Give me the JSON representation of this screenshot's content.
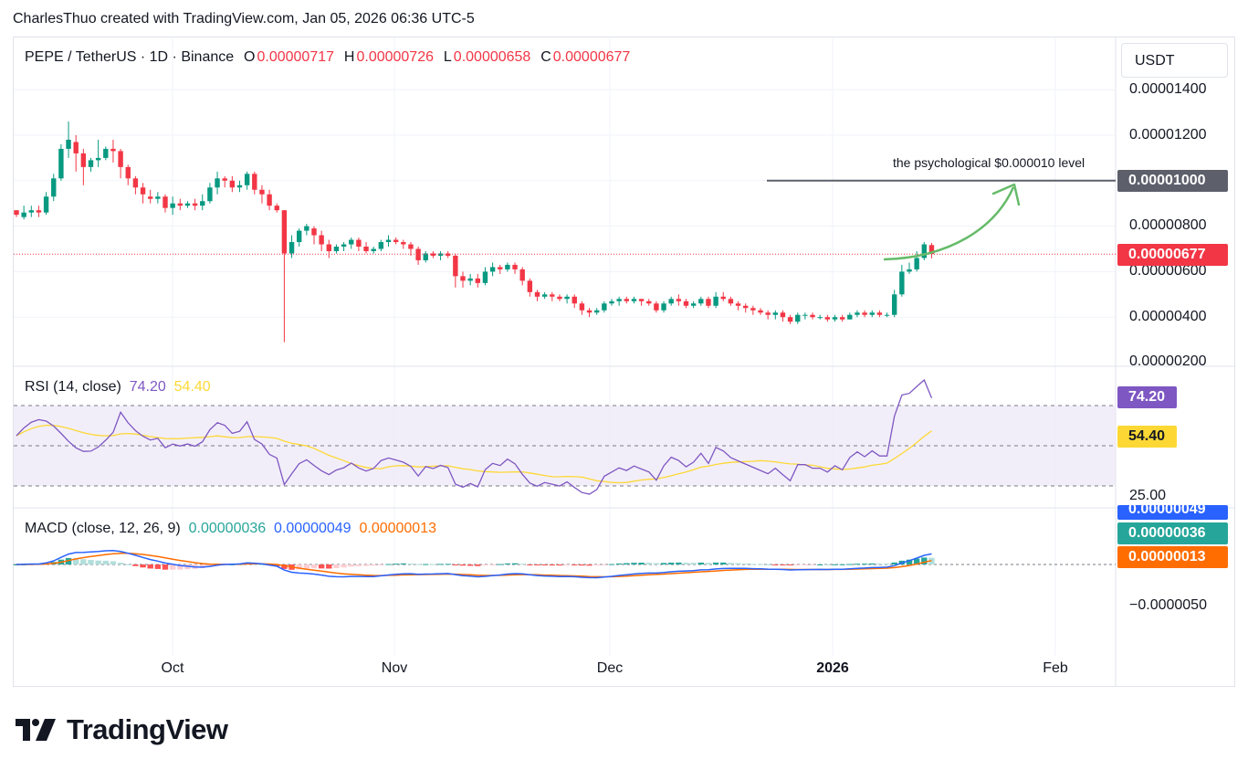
{
  "header": {
    "attribution": "CharlesThuo created with TradingView.com, Jan 05, 2026 06:36 UTC-5"
  },
  "symbol": {
    "title": "PEPE / TetherUS · 1D · Binance",
    "o_label": "O",
    "o_value": "0.00000717",
    "h_label": "H",
    "h_value": "0.00000726",
    "l_label": "L",
    "l_value": "0.00000658",
    "c_label": "C",
    "c_value": "0.00000677"
  },
  "currency_button": "USDT",
  "price_axis": {
    "ticks": [
      "0.00001400",
      "0.00001200",
      "0.00000800",
      "0.00000600",
      "0.00000400",
      "0.00000200"
    ],
    "level_badge": "0.00001000",
    "last_price_badge": "0.00000677"
  },
  "annotation": "the psychological $0.000010 level",
  "rsi": {
    "title": "RSI (14, close)",
    "value": "74.20",
    "ma_value": "54.40",
    "badge_value": "74.20",
    "badge_ma": "54.40",
    "tick_low": "25.00"
  },
  "macd": {
    "title": "MACD (close, 12, 26, 9)",
    "hist_value": "0.00000036",
    "macd_value": "0.00000049",
    "signal_value": "0.00000013",
    "badge_macd": "0.00000049",
    "badge_hist": "0.00000036",
    "badge_signal": "0.00000013",
    "tick_neg": "−0.0000050"
  },
  "time_axis": [
    "Oct",
    "Nov",
    "Dec",
    "2026",
    "Feb"
  ],
  "logo": "TradingView",
  "colors": {
    "up": "#089981",
    "down": "#f23645",
    "rsi": "#7e57c2",
    "rsi_ma": "#fdd835",
    "macd": "#2962ff",
    "signal": "#ff6d00",
    "arrow": "#66bb6a",
    "level": "#5d606b"
  },
  "chart_data": {
    "type": "candlestick",
    "symbol": "PEPE/USDT",
    "interval": "1D",
    "x_start": "2025-09-08",
    "y_range": [
      2e-06,
      1.5e-05
    ],
    "horizontal_level": 1e-05,
    "last_price": 6.77e-06,
    "ohlc": [
      [
        8.7,
        8.5,
        8.7,
        8.4
      ],
      [
        8.4,
        8.6,
        8.9,
        8.3
      ],
      [
        8.6,
        8.7,
        8.9,
        8.4
      ],
      [
        8.7,
        8.6,
        8.9,
        8.4
      ],
      [
        8.6,
        9.3,
        9.5,
        8.5
      ],
      [
        9.3,
        10.1,
        10.3,
        9.1
      ],
      [
        10.1,
        11.4,
        11.6,
        10.0
      ],
      [
        11.4,
        11.8,
        12.6,
        11.0
      ],
      [
        11.7,
        11.2,
        12.0,
        10.4
      ],
      [
        11.2,
        10.6,
        11.4,
        9.8
      ],
      [
        10.6,
        10.9,
        11.0,
        10.4
      ],
      [
        10.9,
        11.0,
        11.8,
        10.6
      ],
      [
        11.0,
        11.4,
        11.5,
        10.9
      ],
      [
        11.4,
        11.3,
        11.8,
        10.8
      ],
      [
        11.3,
        10.6,
        11.4,
        10.1
      ],
      [
        10.6,
        10.1,
        10.7,
        9.8
      ],
      [
        10.1,
        9.7,
        10.2,
        9.4
      ],
      [
        9.7,
        9.4,
        9.9,
        9.0
      ],
      [
        9.3,
        9.2,
        9.6,
        9.0
      ],
      [
        9.2,
        9.3,
        9.5,
        9.0
      ],
      [
        9.3,
        8.8,
        9.4,
        8.6
      ],
      [
        8.8,
        9.0,
        9.3,
        8.5
      ],
      [
        9.0,
        8.9,
        9.2,
        8.7
      ],
      [
        8.9,
        9.0,
        9.1,
        8.8
      ],
      [
        9.0,
        8.9,
        9.2,
        8.7
      ],
      [
        8.9,
        9.1,
        9.4,
        8.7
      ],
      [
        9.1,
        9.7,
        9.9,
        9.0
      ],
      [
        9.7,
        10.1,
        10.4,
        9.4
      ],
      [
        10.1,
        10.0,
        10.2,
        9.7
      ],
      [
        10.0,
        9.7,
        10.2,
        9.5
      ],
      [
        9.7,
        9.8,
        10.0,
        9.5
      ],
      [
        9.8,
        10.3,
        10.4,
        9.6
      ],
      [
        10.3,
        9.6,
        10.4,
        9.4
      ],
      [
        9.6,
        9.4,
        9.8,
        9.0
      ],
      [
        9.4,
        8.9,
        9.6,
        8.7
      ],
      [
        8.9,
        8.7,
        9.0,
        8.6
      ],
      [
        8.7,
        6.8,
        8.7,
        2.9
      ],
      [
        6.8,
        7.3,
        7.6,
        6.6
      ],
      [
        7.3,
        7.8,
        7.9,
        7.1
      ],
      [
        7.8,
        8.0,
        8.1,
        7.6
      ],
      [
        7.9,
        7.6,
        8.0,
        7.2
      ],
      [
        7.6,
        7.2,
        7.8,
        6.9
      ],
      [
        7.2,
        6.9,
        7.4,
        6.6
      ],
      [
        6.9,
        7.1,
        7.2,
        6.8
      ],
      [
        7.1,
        7.2,
        7.3,
        6.9
      ],
      [
        7.2,
        7.4,
        7.5,
        7.0
      ],
      [
        7.4,
        7.1,
        7.5,
        6.9
      ],
      [
        7.1,
        6.9,
        7.3,
        6.8
      ],
      [
        6.9,
        7.0,
        7.1,
        6.8
      ],
      [
        7.0,
        7.3,
        7.4,
        6.9
      ],
      [
        7.3,
        7.4,
        7.6,
        7.1
      ],
      [
        7.4,
        7.3,
        7.5,
        7.2
      ],
      [
        7.3,
        7.2,
        7.4,
        7.0
      ],
      [
        7.2,
        7.0,
        7.3,
        6.7
      ],
      [
        7.0,
        6.5,
        7.1,
        6.3
      ],
      [
        6.5,
        6.8,
        6.9,
        6.4
      ],
      [
        6.8,
        6.7,
        6.9,
        6.6
      ],
      [
        6.7,
        6.8,
        6.9,
        6.5
      ],
      [
        6.8,
        6.7,
        6.9,
        6.6
      ],
      [
        6.7,
        5.8,
        6.8,
        5.3
      ],
      [
        5.8,
        5.6,
        6.0,
        5.3
      ],
      [
        5.6,
        5.7,
        5.9,
        5.4
      ],
      [
        5.7,
        5.5,
        5.9,
        5.3
      ],
      [
        5.5,
        6.0,
        6.2,
        5.4
      ],
      [
        6.0,
        6.2,
        6.4,
        5.8
      ],
      [
        6.2,
        6.1,
        6.3,
        5.9
      ],
      [
        6.1,
        6.3,
        6.4,
        6.0
      ],
      [
        6.3,
        6.1,
        6.4,
        5.9
      ],
      [
        6.1,
        5.6,
        6.2,
        5.4
      ],
      [
        5.6,
        5.1,
        5.7,
        4.9
      ],
      [
        5.1,
        4.9,
        5.2,
        4.7
      ],
      [
        4.9,
        5.0,
        5.1,
        4.8
      ],
      [
        5.0,
        4.9,
        5.1,
        4.7
      ],
      [
        4.9,
        4.8,
        5.0,
        4.7
      ],
      [
        4.8,
        4.9,
        5.0,
        4.6
      ],
      [
        4.9,
        4.6,
        5.0,
        4.4
      ],
      [
        4.6,
        4.3,
        4.7,
        4.1
      ],
      [
        4.3,
        4.2,
        4.4,
        4.0
      ],
      [
        4.2,
        4.3,
        4.4,
        4.1
      ],
      [
        4.3,
        4.6,
        4.7,
        4.2
      ],
      [
        4.6,
        4.7,
        4.8,
        4.5
      ],
      [
        4.7,
        4.8,
        4.9,
        4.5
      ],
      [
        4.8,
        4.7,
        4.9,
        4.6
      ],
      [
        4.7,
        4.8,
        4.9,
        4.6
      ],
      [
        4.8,
        4.7,
        4.8,
        4.5
      ],
      [
        4.7,
        4.6,
        4.8,
        4.5
      ],
      [
        4.6,
        4.3,
        4.7,
        4.2
      ],
      [
        4.3,
        4.6,
        4.7,
        4.2
      ],
      [
        4.6,
        4.8,
        4.9,
        4.5
      ],
      [
        4.8,
        4.7,
        5.0,
        4.5
      ],
      [
        4.7,
        4.5,
        4.8,
        4.4
      ],
      [
        4.5,
        4.6,
        4.7,
        4.4
      ],
      [
        4.6,
        4.8,
        4.9,
        4.5
      ],
      [
        4.8,
        4.5,
        4.9,
        4.4
      ],
      [
        4.5,
        4.9,
        5.1,
        4.4
      ],
      [
        4.9,
        4.8,
        5.1,
        4.7
      ],
      [
        4.8,
        4.6,
        4.9,
        4.5
      ],
      [
        4.6,
        4.5,
        4.7,
        4.3
      ],
      [
        4.5,
        4.4,
        4.6,
        4.2
      ],
      [
        4.4,
        4.3,
        4.5,
        4.1
      ],
      [
        4.3,
        4.2,
        4.4,
        4.1
      ],
      [
        4.2,
        4.1,
        4.3,
        3.9
      ],
      [
        4.1,
        4.2,
        4.3,
        3.9
      ],
      [
        4.2,
        4.0,
        4.3,
        3.8
      ],
      [
        4.0,
        3.8,
        4.1,
        3.7
      ],
      [
        3.8,
        4.1,
        4.2,
        3.7
      ],
      [
        4.1,
        4.1,
        4.2,
        3.9
      ],
      [
        4.1,
        4.0,
        4.2,
        3.9
      ],
      [
        4.0,
        4.0,
        4.1,
        3.9
      ],
      [
        4.0,
        3.9,
        4.1,
        3.8
      ],
      [
        3.9,
        4.0,
        4.1,
        3.8
      ],
      [
        4.0,
        3.9,
        4.1,
        3.8
      ],
      [
        3.9,
        4.1,
        4.2,
        3.9
      ],
      [
        4.1,
        4.2,
        4.3,
        4.0
      ],
      [
        4.2,
        4.1,
        4.3,
        4.0
      ],
      [
        4.1,
        4.2,
        4.3,
        4.0
      ],
      [
        4.2,
        4.1,
        4.3,
        4.0
      ],
      [
        4.1,
        4.1,
        4.2,
        4.0
      ],
      [
        4.1,
        5.0,
        5.2,
        4.0
      ],
      [
        5.0,
        6.0,
        6.3,
        4.9
      ],
      [
        6.0,
        6.1,
        6.4,
        5.9
      ],
      [
        6.1,
        6.6,
        6.9,
        6.0
      ],
      [
        6.6,
        7.2,
        7.3,
        6.5
      ],
      [
        7.17,
        6.77,
        7.26,
        6.58
      ]
    ],
    "rsi": {
      "range": [
        0,
        100
      ],
      "upper": 70,
      "middle": 50,
      "lower": 30,
      "last": 74.2,
      "ma_last": 54.4
    },
    "macd": {
      "zero": 0,
      "last_macd": 4.9e-07,
      "last_signal": 1.3e-07,
      "last_hist": 3.6e-07
    }
  }
}
